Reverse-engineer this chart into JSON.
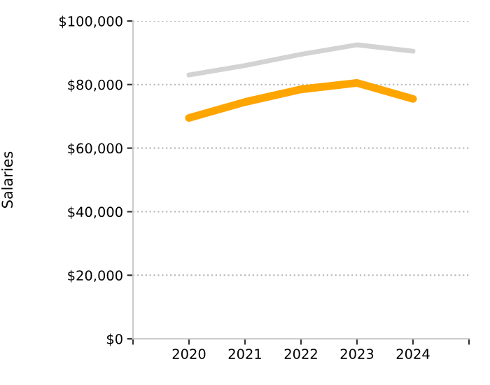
{
  "chart_data": {
    "type": "line",
    "ylabel": "Salaries",
    "x": [
      2020,
      2021,
      2022,
      2023,
      2024
    ],
    "series": [
      {
        "color": "#d3d3d3",
        "values": [
          83000,
          86000,
          89500,
          92500,
          90500
        ]
      },
      {
        "color": "#ffa500",
        "values": [
          69500,
          74500,
          78500,
          80500,
          75500
        ]
      }
    ],
    "xlim": [
      2019,
      2025
    ],
    "xticks": [
      {
        "value": 2019,
        "label": null
      },
      2020,
      2021,
      2022,
      2023,
      2024,
      {
        "value": 2025,
        "label": null
      }
    ],
    "ylim": [
      0,
      100000
    ],
    "yticks": [
      {
        "value": 0,
        "label": "$0"
      },
      {
        "value": 20000,
        "label": "$20,000"
      },
      {
        "value": 40000,
        "label": "$40,000"
      },
      {
        "value": 60000,
        "label": "$60,000"
      },
      {
        "value": 80000,
        "label": "$80,000"
      },
      {
        "value": 100000,
        "label": "$100,000"
      }
    ],
    "grid": "y",
    "marker": "none",
    "line_style": "solid"
  }
}
